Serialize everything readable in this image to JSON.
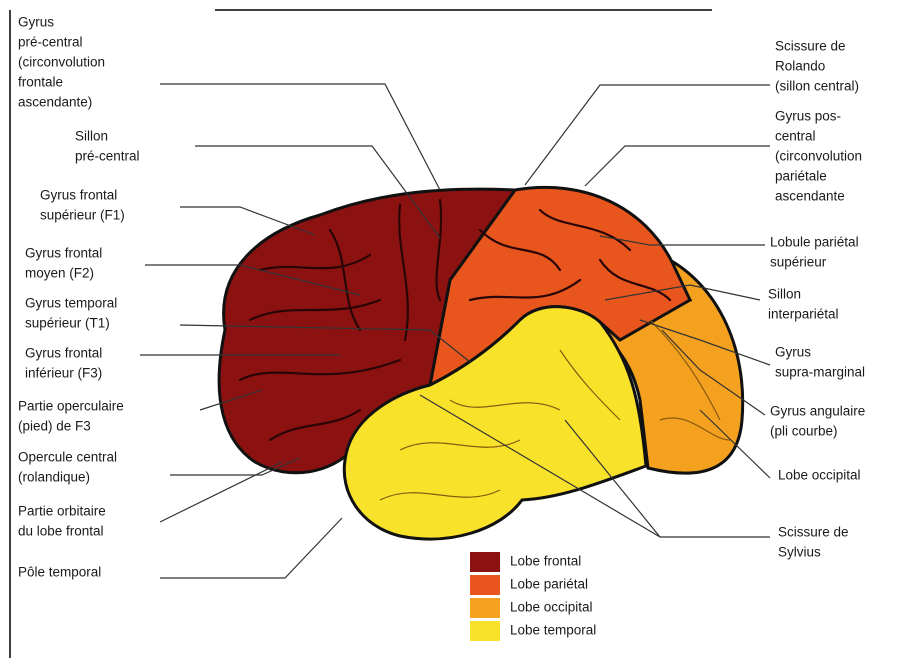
{
  "left_labels": [
    {
      "lines": [
        "Gyrus",
        "pré-central",
        "(circonvolution",
        "frontale",
        "ascendante)"
      ]
    },
    {
      "lines": [
        "Sillon",
        "pré-central"
      ]
    },
    {
      "lines": [
        "Gyrus frontal",
        "supérieur (F1)"
      ]
    },
    {
      "lines": [
        "Gyrus frontal",
        "moyen (F2)"
      ]
    },
    {
      "lines": [
        "Gyrus temporal",
        "supérieur (T1)"
      ]
    },
    {
      "lines": [
        "Gyrus frontal",
        "inférieur (F3)"
      ]
    },
    {
      "lines": [
        "Partie operculaire",
        "(pied) de F3"
      ]
    },
    {
      "lines": [
        "Opercule central",
        "(rolandique)"
      ]
    },
    {
      "lines": [
        "Partie orbitaire",
        "du lobe frontal"
      ]
    },
    {
      "lines": [
        "Pôle temporal"
      ]
    }
  ],
  "right_labels": [
    {
      "lines": [
        "Scissure de",
        "Rolando",
        "(sillon central)"
      ]
    },
    {
      "lines": [
        "Gyrus pos-",
        "central",
        "(circonvolution",
        "pariétale",
        "ascendante"
      ]
    },
    {
      "lines": [
        "Lobule pariétal",
        "supérieur"
      ]
    },
    {
      "lines": [
        "Sillon",
        "interpariétal"
      ]
    },
    {
      "lines": [
        "Gyrus",
        "supra-marginal"
      ]
    },
    {
      "lines": [
        "Gyrus angulaire",
        "(pli courbe)"
      ]
    },
    {
      "lines": [
        "Lobe occipital"
      ]
    },
    {
      "lines": [
        "Scissure de",
        "Sylvius"
      ]
    }
  ],
  "legend": [
    {
      "label": "Lobe frontal",
      "color": "#8c1212"
    },
    {
      "label": "Lobe pariétal",
      "color": "#e8561e"
    },
    {
      "label": "Lobe occipital",
      "color": "#f4a11f"
    },
    {
      "label": "Lobe temporal",
      "color": "#f8e22a"
    }
  ]
}
